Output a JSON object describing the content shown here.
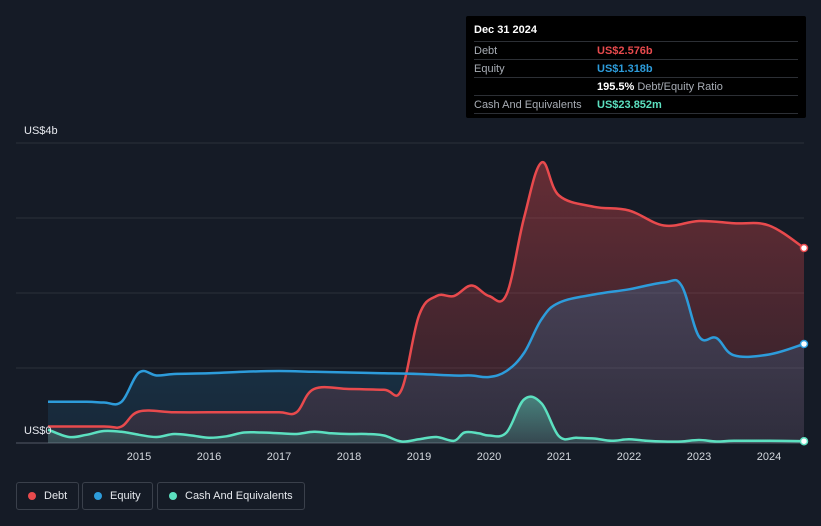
{
  "tooltip": {
    "date": "Dec 31 2024",
    "rows": [
      {
        "label": "Debt",
        "value": "US$2.576b"
      },
      {
        "label": "Equity",
        "value": "US$1.318b"
      },
      {
        "label": "",
        "value": "195.5%",
        "suffix": "Debt/Equity Ratio"
      },
      {
        "label": "Cash And Equivalents",
        "value": "US$23.852m"
      }
    ]
  },
  "chart_data": {
    "type": "area",
    "title": "",
    "xlabel": "",
    "ylabel": "",
    "y_max_label": "US$4b",
    "y_min_label": "US$0",
    "ylim": [
      0,
      4
    ],
    "y_units": "US$ billions",
    "xlim": [
      2014.2,
      2025.0
    ],
    "x_ticks": [
      "2015",
      "2016",
      "2017",
      "2018",
      "2019",
      "2020",
      "2021",
      "2022",
      "2023",
      "2024"
    ],
    "legend_position": "bottom-left",
    "grid": true,
    "series": [
      {
        "name": "Debt",
        "color": "#e84a4d",
        "points": [
          [
            2014.2,
            0.22
          ],
          [
            2015.0,
            0.22
          ],
          [
            2015.25,
            0.22
          ],
          [
            2015.5,
            0.42
          ],
          [
            2016.0,
            0.41
          ],
          [
            2016.5,
            0.41
          ],
          [
            2017.0,
            0.41
          ],
          [
            2017.5,
            0.41
          ],
          [
            2017.75,
            0.41
          ],
          [
            2018.0,
            0.72
          ],
          [
            2018.5,
            0.72
          ],
          [
            2019.0,
            0.71
          ],
          [
            2019.25,
            0.71
          ],
          [
            2019.5,
            1.7
          ],
          [
            2019.75,
            1.96
          ],
          [
            2020.0,
            1.96
          ],
          [
            2020.25,
            2.1
          ],
          [
            2020.5,
            1.96
          ],
          [
            2020.75,
            1.98
          ],
          [
            2021.0,
            3.0
          ],
          [
            2021.25,
            3.74
          ],
          [
            2021.5,
            3.3
          ],
          [
            2022.0,
            3.15
          ],
          [
            2022.5,
            3.1
          ],
          [
            2023.0,
            2.9
          ],
          [
            2023.5,
            2.96
          ],
          [
            2024.0,
            2.93
          ],
          [
            2024.5,
            2.9
          ],
          [
            2025.0,
            2.6
          ]
        ]
      },
      {
        "name": "Equity",
        "color": "#2d9cdb",
        "points": [
          [
            2014.2,
            0.55
          ],
          [
            2014.75,
            0.55
          ],
          [
            2015.0,
            0.54
          ],
          [
            2015.25,
            0.55
          ],
          [
            2015.5,
            0.94
          ],
          [
            2015.75,
            0.9
          ],
          [
            2016.0,
            0.92
          ],
          [
            2016.5,
            0.93
          ],
          [
            2017.0,
            0.95
          ],
          [
            2017.5,
            0.96
          ],
          [
            2018.0,
            0.95
          ],
          [
            2018.5,
            0.94
          ],
          [
            2019.0,
            0.93
          ],
          [
            2019.5,
            0.92
          ],
          [
            2020.0,
            0.9
          ],
          [
            2020.25,
            0.9
          ],
          [
            2020.5,
            0.88
          ],
          [
            2020.75,
            0.96
          ],
          [
            2021.0,
            1.2
          ],
          [
            2021.25,
            1.65
          ],
          [
            2021.5,
            1.87
          ],
          [
            2022.0,
            1.98
          ],
          [
            2022.5,
            2.05
          ],
          [
            2023.0,
            2.14
          ],
          [
            2023.25,
            2.1
          ],
          [
            2023.5,
            1.42
          ],
          [
            2023.75,
            1.4
          ],
          [
            2024.0,
            1.17
          ],
          [
            2024.5,
            1.18
          ],
          [
            2025.0,
            1.32
          ]
        ]
      },
      {
        "name": "Cash And Equivalents",
        "color": "#5ce0c0",
        "points": [
          [
            2014.2,
            0.18
          ],
          [
            2014.5,
            0.08
          ],
          [
            2014.75,
            0.11
          ],
          [
            2015.0,
            0.16
          ],
          [
            2015.25,
            0.15
          ],
          [
            2015.5,
            0.11
          ],
          [
            2015.75,
            0.08
          ],
          [
            2016.0,
            0.12
          ],
          [
            2016.25,
            0.1
          ],
          [
            2016.5,
            0.07
          ],
          [
            2016.75,
            0.09
          ],
          [
            2017.0,
            0.14
          ],
          [
            2017.25,
            0.14
          ],
          [
            2017.5,
            0.13
          ],
          [
            2017.75,
            0.12
          ],
          [
            2018.0,
            0.15
          ],
          [
            2018.25,
            0.13
          ],
          [
            2018.5,
            0.12
          ],
          [
            2018.75,
            0.12
          ],
          [
            2019.0,
            0.1
          ],
          [
            2019.25,
            0.02
          ],
          [
            2019.5,
            0.05
          ],
          [
            2019.75,
            0.08
          ],
          [
            2020.0,
            0.03
          ],
          [
            2020.15,
            0.14
          ],
          [
            2020.35,
            0.13
          ],
          [
            2020.5,
            0.1
          ],
          [
            2020.75,
            0.14
          ],
          [
            2021.0,
            0.58
          ],
          [
            2021.25,
            0.53
          ],
          [
            2021.5,
            0.09
          ],
          [
            2021.75,
            0.07
          ],
          [
            2022.0,
            0.06
          ],
          [
            2022.25,
            0.03
          ],
          [
            2022.5,
            0.05
          ],
          [
            2022.75,
            0.03
          ],
          [
            2023.0,
            0.02
          ],
          [
            2023.25,
            0.02
          ],
          [
            2023.5,
            0.04
          ],
          [
            2023.75,
            0.02
          ],
          [
            2024.0,
            0.03
          ],
          [
            2024.5,
            0.03
          ],
          [
            2025.0,
            0.024
          ]
        ]
      }
    ]
  }
}
